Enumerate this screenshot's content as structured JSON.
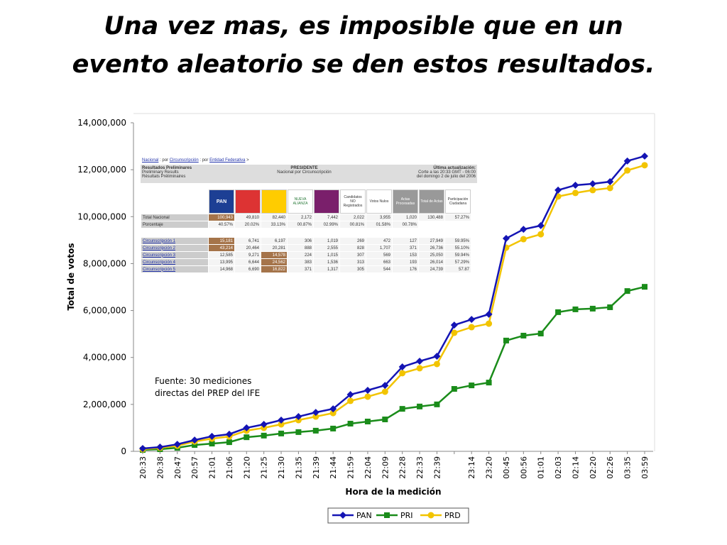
{
  "chart_data": {
    "type": "line",
    "title": [
      "Una vez mas, es imposible que en un",
      "evento aleatorio se den estos resultados."
    ],
    "xlabel": "Hora de la medición",
    "ylabel": "Total de votos",
    "annotation": [
      "Fuente: 30 mediciones",
      "directas del PREP del IFE"
    ],
    "categories": [
      "20:33",
      "20:38",
      "20:47",
      "20:57",
      "21:01",
      "21:06",
      "21:20",
      "21:25",
      "21:30",
      "21:35",
      "21:39",
      "21:44",
      "21:59",
      "22:04",
      "22:09",
      "22:28",
      "22:33",
      "22:39",
      null,
      "23:14",
      "23:20",
      "00:45",
      "00:56",
      "01:01",
      "02:03",
      "02:14",
      "02:20",
      "02:26",
      "03:35",
      "03:59"
    ],
    "series": [
      {
        "name": "PAN",
        "color": "#1414b4",
        "marker": "diamond",
        "values": [
          120000,
          180000,
          300000,
          480000,
          640000,
          730000,
          1000000,
          1150000,
          1330000,
          1480000,
          1660000,
          1810000,
          2420000,
          2600000,
          2810000,
          3600000,
          3840000,
          4050000,
          5380000,
          5620000,
          5840000,
          9070000,
          9460000,
          9620000,
          11130000,
          11340000,
          11400000,
          11490000,
          12370000,
          12580000
        ]
      },
      {
        "name": "PRI",
        "color": "#1a8c1a",
        "marker": "square",
        "values": [
          60000,
          90000,
          150000,
          270000,
          330000,
          390000,
          600000,
          670000,
          760000,
          820000,
          880000,
          970000,
          1180000,
          1270000,
          1360000,
          1810000,
          1910000,
          2000000,
          2660000,
          2810000,
          2930000,
          4720000,
          4930000,
          5020000,
          5930000,
          6050000,
          6080000,
          6140000,
          6830000,
          7010000
        ]
      },
      {
        "name": "PRD",
        "color": "#f2c400",
        "marker": "circle",
        "values": [
          90000,
          150000,
          240000,
          420000,
          540000,
          630000,
          880000,
          1000000,
          1150000,
          1330000,
          1480000,
          1630000,
          2150000,
          2330000,
          2540000,
          3330000,
          3540000,
          3720000,
          5050000,
          5290000,
          5440000,
          8680000,
          9040000,
          9250000,
          10860000,
          11010000,
          11130000,
          11220000,
          11970000,
          12190000
        ]
      }
    ],
    "ylim": [
      0,
      14000000
    ],
    "yticks": [
      {
        "value": 0,
        "label": "0"
      },
      {
        "value": 2000000,
        "label": "2,000,000"
      },
      {
        "value": 4000000,
        "label": "4,000,000"
      },
      {
        "value": 6000000,
        "label": "6,000,000"
      },
      {
        "value": 8000000,
        "label": "8,000,000"
      },
      {
        "value": 10000000,
        "label": "10,000,000"
      },
      {
        "value": 12000000,
        "label": "12,000,000"
      },
      {
        "value": 14000000,
        "label": "14,000,000"
      }
    ],
    "grid": false,
    "legend": "bottom",
    "inset": {
      "breadcrumb": [
        "Nacional",
        " : por ",
        "Circunscripción",
        " : por ",
        "Entidad Federativa",
        " >"
      ],
      "left": [
        "Resultados Preliminares",
        "Preliminary Results",
        "Résultats Préliminaires"
      ],
      "center": [
        "PRESIDENTE",
        "Nacional por Circunscripción"
      ],
      "right": [
        "Última actualización:",
        "Corte a las 20:33 GMT - 06:00",
        "del domingo 2 de julio del 2006"
      ],
      "headers": [
        "PAN",
        "",
        "",
        "NUEVA ALIANZA",
        "",
        "Candidatos NO Registrados",
        "Votos Nulos",
        "Actas Procesadas",
        "Total de Actas",
        "Participación Ciudadana"
      ],
      "rows": [
        [
          "Total Nacional",
          "100,943",
          "49,810",
          "82,440",
          "2,172",
          "7,442",
          "2,022",
          "3,955",
          "1,020",
          "130,488",
          "57.27%"
        ],
        [
          "Porcentaje",
          "40.57%",
          "20.02%",
          "33.13%",
          "00.87%",
          "02.99%",
          "00.81%",
          "01.58%",
          "00.78%"
        ],
        [
          "Circunscripción 1",
          "15,181",
          "6,741",
          "6,197",
          "306",
          "1,019",
          "269",
          "472",
          "127",
          "27,949",
          "59.95%"
        ],
        [
          "Circunscripción 2",
          "43,214",
          "20,464",
          "20,281",
          "888",
          "2,555",
          "828",
          "1,707",
          "371",
          "26,736",
          "55.10%"
        ],
        [
          "Circunscripción 3",
          "12,585",
          "9,271",
          "14,578",
          "224",
          "1,015",
          "307",
          "569",
          "153",
          "25,050",
          "59.94%"
        ],
        [
          "Circunscripción 4",
          "13,995",
          "6,644",
          "24,562",
          "383",
          "1,536",
          "313",
          "663",
          "193",
          "26,014",
          "57.29%"
        ],
        [
          "Circunscripción 5",
          "14,968",
          "6,690",
          "16,822",
          "371",
          "1,317",
          "305",
          "544",
          "176",
          "24,739",
          "57.87"
        ]
      ]
    }
  }
}
